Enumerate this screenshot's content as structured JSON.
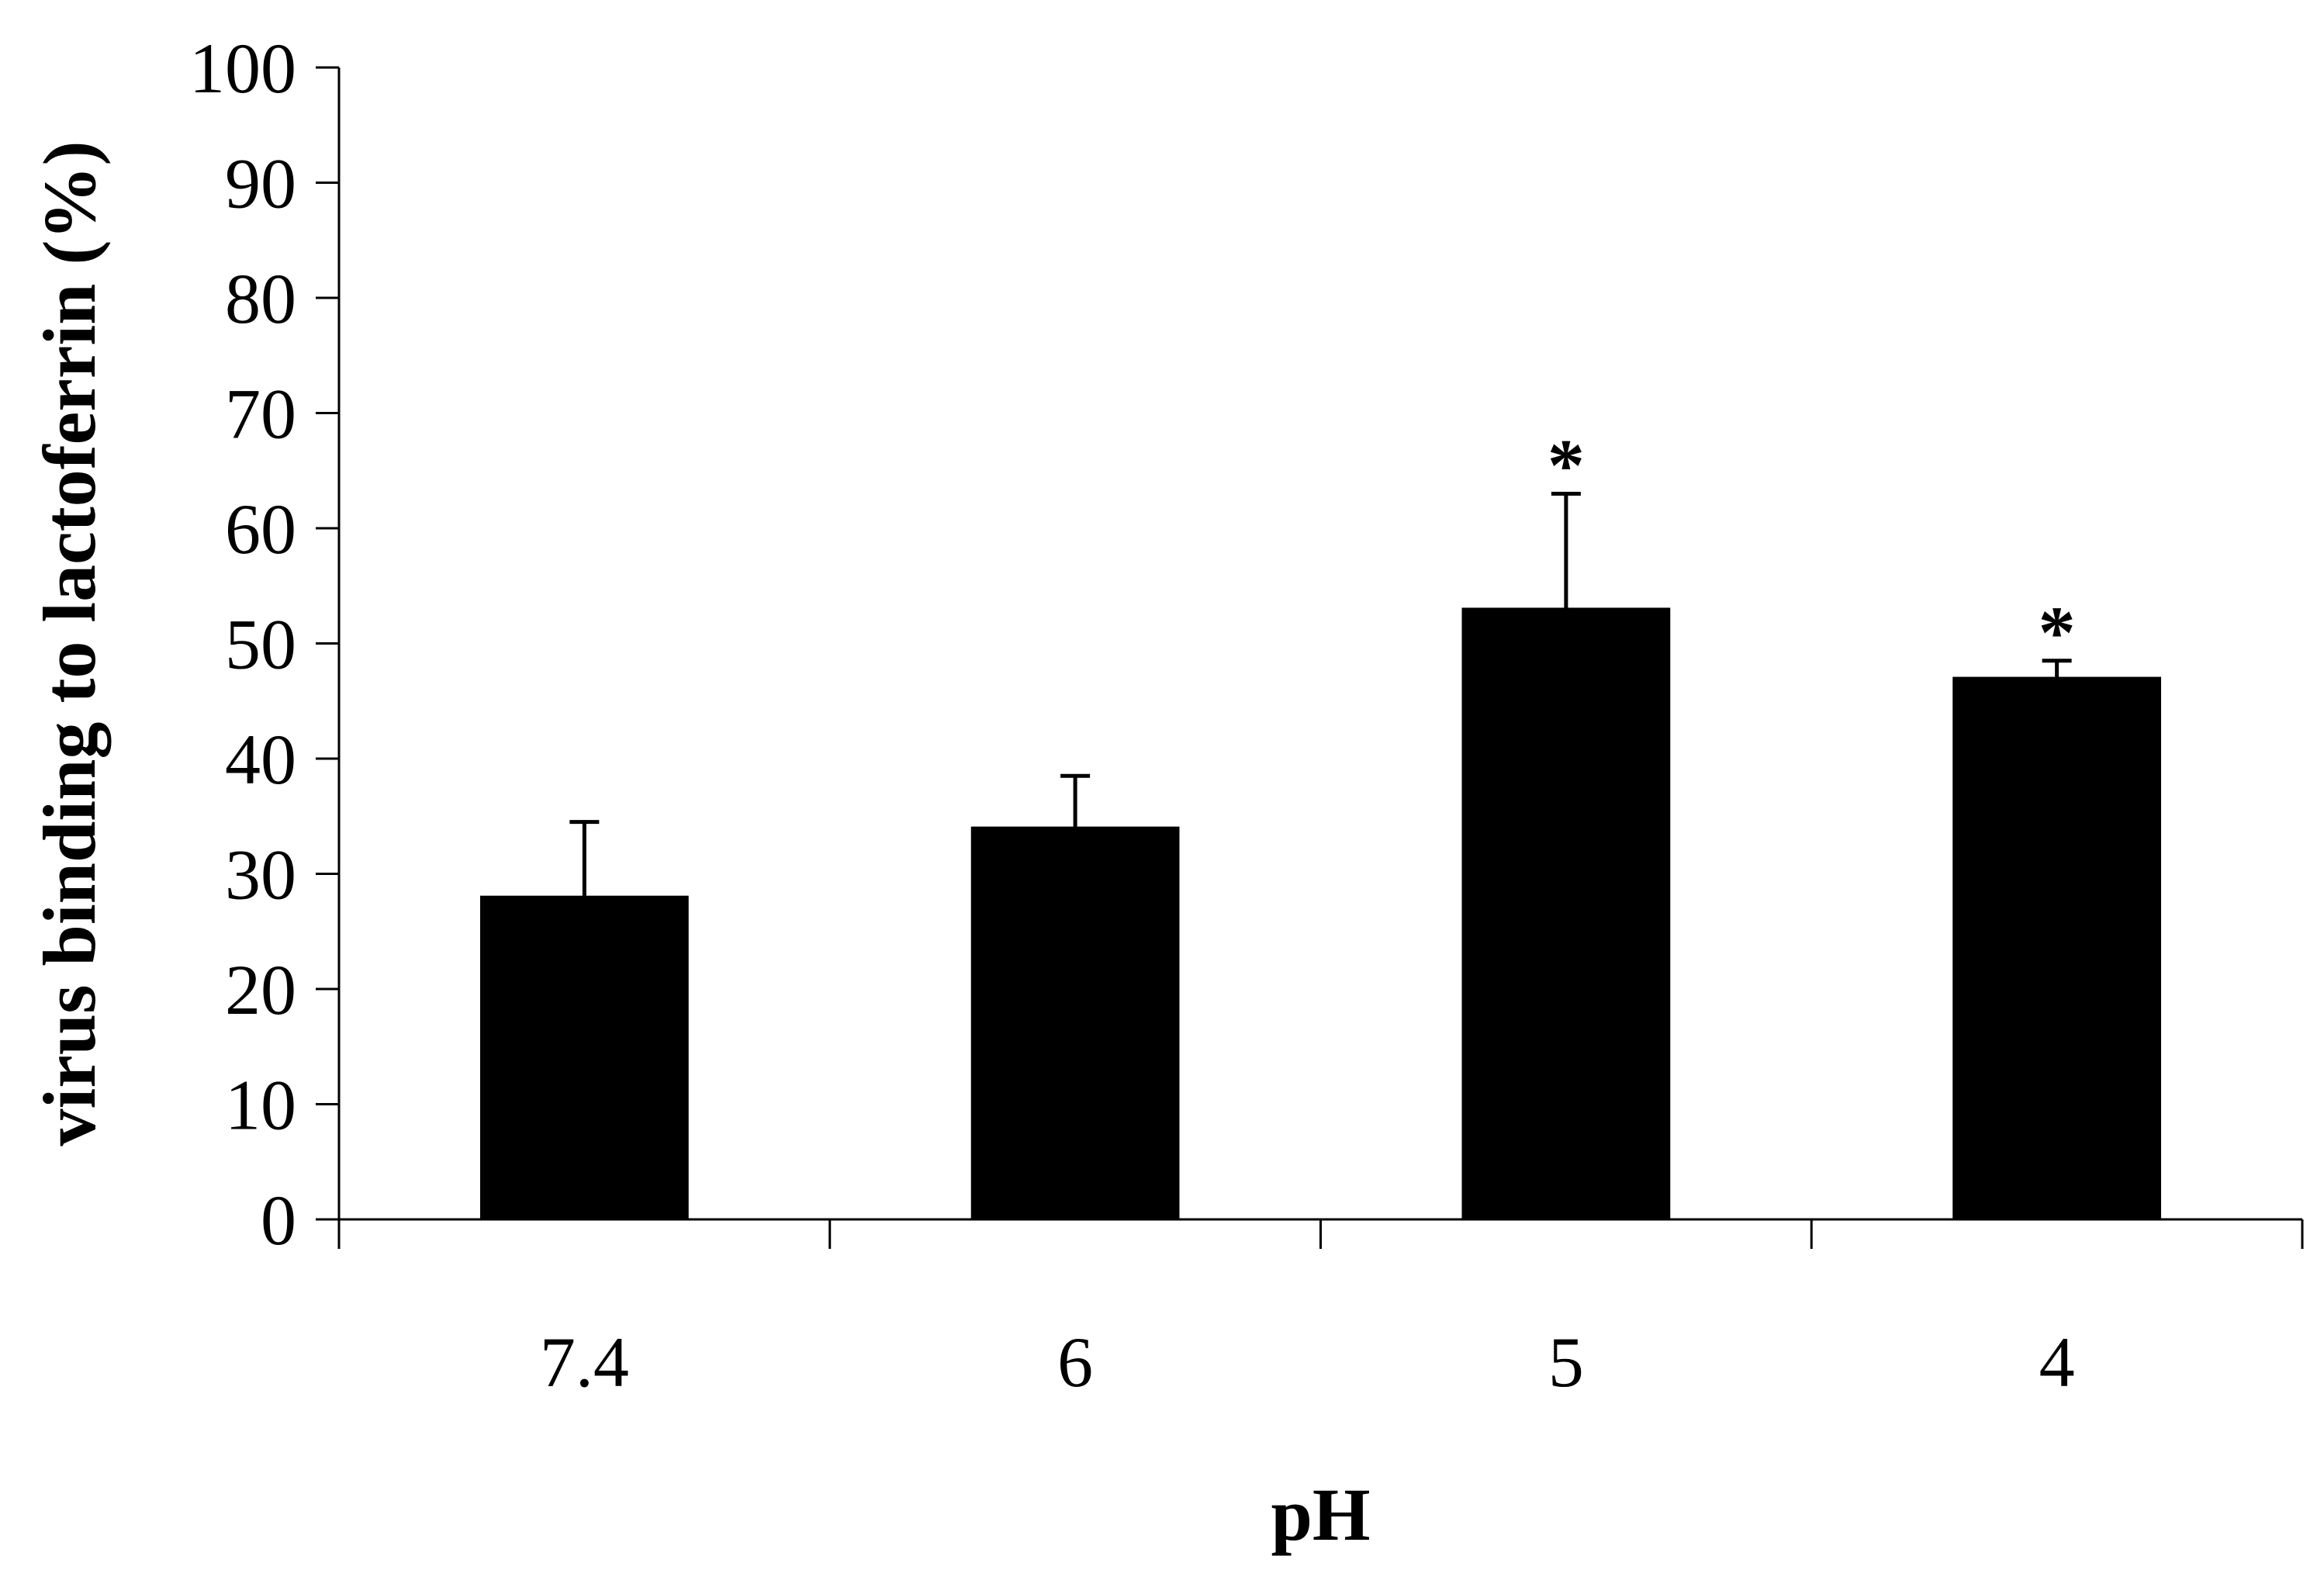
{
  "chart_data": {
    "type": "bar",
    "categories": [
      "7.4",
      "6",
      "5",
      "4"
    ],
    "values": [
      28,
      34,
      53,
      47
    ],
    "error_upper": [
      34.5,
      38.5,
      63,
      48.5
    ],
    "annotations": [
      "",
      "",
      "*",
      "*"
    ],
    "xlabel": "pH",
    "ylabel": "virus binding to lactoferrin (%)",
    "ylim": [
      0,
      100
    ],
    "yticks": [
      0,
      10,
      20,
      30,
      40,
      50,
      60,
      70,
      80,
      90,
      100
    ],
    "grid": false,
    "colors": {
      "bar": "#000000",
      "axis": "#000000",
      "background": "#ffffff"
    }
  }
}
